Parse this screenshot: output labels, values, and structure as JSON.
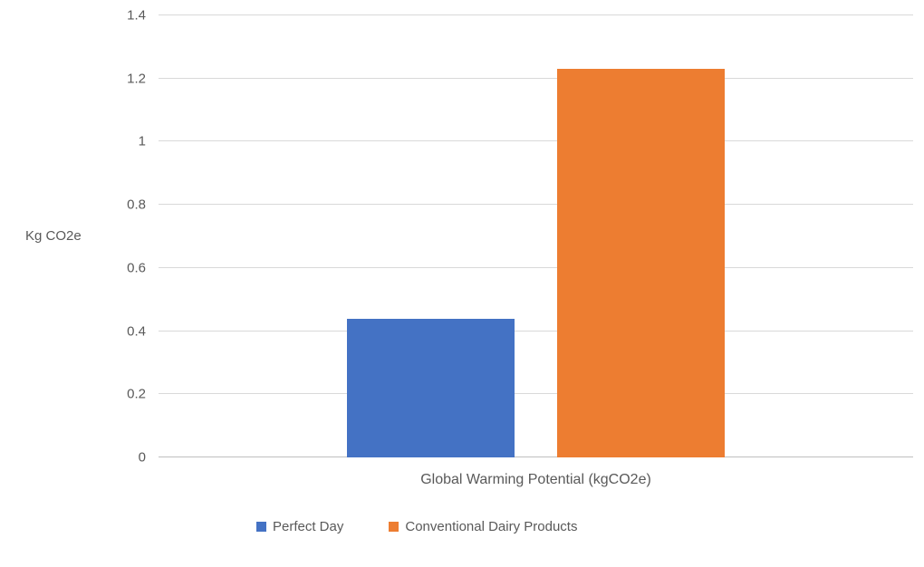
{
  "chart_data": {
    "type": "bar",
    "title": "",
    "xlabel": "",
    "ylabel": "Kg CO2e",
    "categories": [
      "Global Warming Potential (kgCO2e)"
    ],
    "series": [
      {
        "name": "Perfect Day",
        "values": [
          0.44
        ],
        "color": "#4472C4"
      },
      {
        "name": "Conventional Dairy Products",
        "values": [
          1.23
        ],
        "color": "#ED7D31"
      }
    ],
    "ylim": [
      0,
      1.4
    ],
    "ytick_values": [
      0,
      0.2,
      0.4,
      0.6,
      0.8,
      1,
      1.2,
      1.4
    ],
    "ytick_labels": [
      "0",
      "0.2",
      "0.4",
      "0.6",
      "0.8",
      "1",
      "1.2",
      "1.4"
    ],
    "grid": true,
    "legend_position": "bottom"
  },
  "colors": {
    "background": "#FFFFFF",
    "text": "#595959",
    "gridline": "#D9D9D9",
    "axis_line": "#BFBFBF"
  }
}
